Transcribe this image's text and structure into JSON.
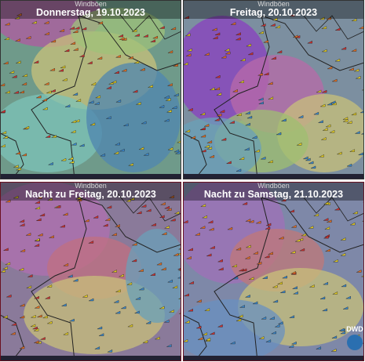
{
  "panels": [
    {
      "label": "Windböen",
      "title": "Donnerstag, 19.10.2023"
    },
    {
      "label": "Windböen",
      "title": "Freitag, 20.10.2023"
    },
    {
      "label": "Windböen",
      "title": "Nacht zu Freitag, 20.10.2023"
    },
    {
      "label": "Windböen",
      "title": "Nacht zu Samstag, 21.10.2023"
    }
  ],
  "logo": "DWD"
}
